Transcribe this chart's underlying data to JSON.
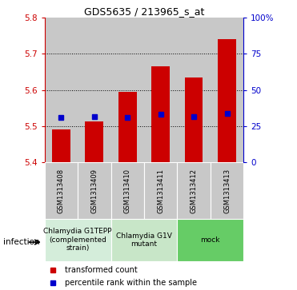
{
  "title": "GDS5635 / 213965_s_at",
  "samples": [
    "GSM1313408",
    "GSM1313409",
    "GSM1313410",
    "GSM1313411",
    "GSM1313412",
    "GSM1313413"
  ],
  "bar_tops": [
    5.49,
    5.513,
    5.595,
    5.665,
    5.635,
    5.74
  ],
  "bar_bottom": 5.4,
  "blue_values": [
    5.525,
    5.527,
    5.525,
    5.533,
    5.527,
    5.535
  ],
  "ylim_left": [
    5.4,
    5.8
  ],
  "ylim_right": [
    0,
    100
  ],
  "yticks_left": [
    5.4,
    5.5,
    5.6,
    5.7,
    5.8
  ],
  "yticks_right": [
    0,
    25,
    50,
    75,
    100
  ],
  "ytick_labels_right": [
    "0",
    "25",
    "50",
    "75",
    "100%"
  ],
  "bar_color": "#cc0000",
  "blue_color": "#0000cc",
  "bar_width": 0.55,
  "groups": [
    {
      "label": "Chlamydia G1TEPP\n(complemented\nstrain)",
      "indices": [
        0,
        1
      ],
      "color": "#d4edda"
    },
    {
      "label": "Chlamydia G1V\nmutant",
      "indices": [
        2,
        3
      ],
      "color": "#c8e6c8"
    },
    {
      "label": "mock",
      "indices": [
        4,
        5
      ],
      "color": "#66cc66"
    }
  ],
  "infection_label": "infection",
  "legend_items": [
    {
      "label": "transformed count",
      "color": "#cc0000"
    },
    {
      "label": "percentile rank within the sample",
      "color": "#0000cc"
    }
  ],
  "left_axis_color": "#cc0000",
  "right_axis_color": "#0000cc",
  "background_sample": "#c8c8c8",
  "grid_dotted_color": "black",
  "title_fontsize": 9,
  "axis_fontsize": 7.5,
  "sample_fontsize": 6,
  "group_fontsize": 6.5,
  "legend_fontsize": 7
}
